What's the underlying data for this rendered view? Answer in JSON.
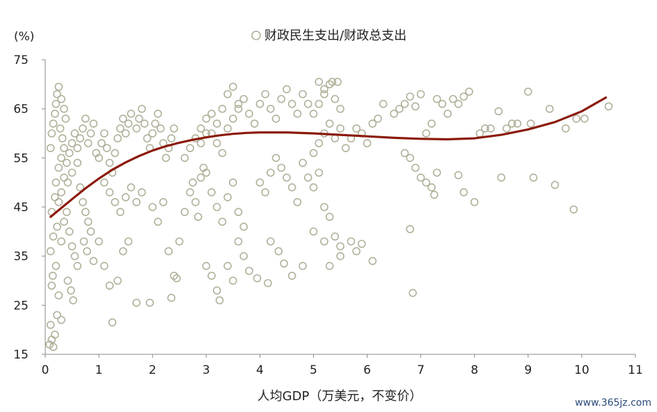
{
  "chart_data": {
    "type": "scatter",
    "y_unit_label": "(%)",
    "xlabel": "人均GDP（万美元，不变价）",
    "xlim": [
      0,
      11
    ],
    "ylim": [
      15,
      75
    ],
    "x_ticks": [
      0,
      1,
      2,
      3,
      4,
      5,
      6,
      7,
      8,
      9,
      10,
      11
    ],
    "y_ticks": [
      15,
      25,
      35,
      45,
      55,
      65,
      75
    ],
    "grid": false,
    "legend_position": "top-center",
    "series": [
      {
        "name": "财政民生支出/财政总支出",
        "marker": "hollow-circle",
        "color": "#b0b09a",
        "points": [
          [
            0.08,
            17
          ],
          [
            0.12,
            18
          ],
          [
            0.15,
            16.5
          ],
          [
            0.1,
            21
          ],
          [
            0.18,
            19
          ],
          [
            0.22,
            23
          ],
          [
            0.3,
            22
          ],
          [
            0.25,
            27
          ],
          [
            0.12,
            29
          ],
          [
            0.14,
            31
          ],
          [
            0.2,
            33
          ],
          [
            0.1,
            36
          ],
          [
            0.15,
            39
          ],
          [
            0.22,
            41
          ],
          [
            0.3,
            38
          ],
          [
            0.35,
            42
          ],
          [
            0.4,
            44
          ],
          [
            0.45,
            40
          ],
          [
            0.5,
            37
          ],
          [
            0.55,
            35
          ],
          [
            0.6,
            33
          ],
          [
            0.42,
            30
          ],
          [
            0.48,
            28
          ],
          [
            0.52,
            26
          ],
          [
            0.12,
            44
          ],
          [
            0.18,
            47
          ],
          [
            0.25,
            46
          ],
          [
            0.3,
            48
          ],
          [
            0.35,
            51
          ],
          [
            0.42,
            50
          ],
          [
            0.5,
            52
          ],
          [
            0.6,
            54
          ],
          [
            0.65,
            49
          ],
          [
            0.7,
            46
          ],
          [
            0.75,
            44
          ],
          [
            0.8,
            42
          ],
          [
            0.85,
            40
          ],
          [
            0.72,
            38
          ],
          [
            0.78,
            36
          ],
          [
            0.9,
            34
          ],
          [
            0.2,
            50
          ],
          [
            0.25,
            53
          ],
          [
            0.3,
            55
          ],
          [
            0.35,
            57
          ],
          [
            0.4,
            54
          ],
          [
            0.45,
            56
          ],
          [
            0.5,
            58
          ],
          [
            0.55,
            60
          ],
          [
            0.6,
            57
          ],
          [
            0.65,
            59
          ],
          [
            0.7,
            61
          ],
          [
            0.75,
            63
          ],
          [
            0.8,
            58
          ],
          [
            0.85,
            60
          ],
          [
            0.9,
            62
          ],
          [
            0.95,
            56
          ],
          [
            0.1,
            57
          ],
          [
            0.12,
            60
          ],
          [
            0.15,
            62
          ],
          [
            0.18,
            64
          ],
          [
            0.2,
            66
          ],
          [
            0.22,
            68
          ],
          [
            0.25,
            69.5
          ],
          [
            0.3,
            67
          ],
          [
            0.35,
            65
          ],
          [
            0.38,
            63
          ],
          [
            0.28,
            61
          ],
          [
            0.32,
            59
          ],
          [
            1.0,
            55
          ],
          [
            1.05,
            58
          ],
          [
            1.1,
            60
          ],
          [
            1.15,
            57
          ],
          [
            1.2,
            54
          ],
          [
            1.25,
            52
          ],
          [
            1.3,
            56
          ],
          [
            1.35,
            59
          ],
          [
            1.4,
            61
          ],
          [
            1.45,
            63
          ],
          [
            1.5,
            60
          ],
          [
            1.55,
            62
          ],
          [
            1.6,
            64
          ],
          [
            1.7,
            61
          ],
          [
            1.75,
            63
          ],
          [
            1.8,
            65
          ],
          [
            1.85,
            62
          ],
          [
            1.9,
            59
          ],
          [
            1.95,
            57
          ],
          [
            2.0,
            60
          ],
          [
            2.05,
            62
          ],
          [
            2.1,
            64
          ],
          [
            2.15,
            61
          ],
          [
            2.2,
            58
          ],
          [
            2.25,
            55
          ],
          [
            2.3,
            57
          ],
          [
            2.35,
            59
          ],
          [
            2.4,
            61
          ],
          [
            1.1,
            50
          ],
          [
            1.2,
            48
          ],
          [
            1.3,
            46
          ],
          [
            1.4,
            44
          ],
          [
            1.5,
            47
          ],
          [
            1.6,
            49
          ],
          [
            1.7,
            46
          ],
          [
            1.8,
            48
          ],
          [
            1.0,
            38
          ],
          [
            1.1,
            33
          ],
          [
            1.2,
            29
          ],
          [
            1.25,
            21.5
          ],
          [
            1.35,
            30
          ],
          [
            1.45,
            36
          ],
          [
            1.55,
            38
          ],
          [
            1.7,
            25.5
          ],
          [
            1.95,
            25.5
          ],
          [
            2.0,
            45
          ],
          [
            2.1,
            42
          ],
          [
            2.2,
            46
          ],
          [
            2.3,
            36
          ],
          [
            2.4,
            31
          ],
          [
            2.45,
            30.5
          ],
          [
            2.35,
            26.5
          ],
          [
            2.5,
            38
          ],
          [
            2.6,
            44
          ],
          [
            2.7,
            48
          ],
          [
            2.75,
            50
          ],
          [
            2.8,
            46
          ],
          [
            2.85,
            43
          ],
          [
            2.9,
            51
          ],
          [
            2.95,
            53
          ],
          [
            2.6,
            55
          ],
          [
            2.7,
            57
          ],
          [
            2.8,
            59
          ],
          [
            2.9,
            61
          ],
          [
            3.0,
            63
          ],
          [
            3.1,
            60
          ],
          [
            3.2,
            58
          ],
          [
            3.3,
            56
          ],
          [
            3.4,
            61
          ],
          [
            3.5,
            63
          ],
          [
            3.6,
            65
          ],
          [
            3.7,
            67
          ],
          [
            3.8,
            64
          ],
          [
            3.9,
            62
          ],
          [
            4.0,
            66
          ],
          [
            4.1,
            68
          ],
          [
            4.2,
            65
          ],
          [
            4.3,
            63
          ],
          [
            4.4,
            67
          ],
          [
            4.5,
            69
          ],
          [
            4.6,
            66
          ],
          [
            4.7,
            64
          ],
          [
            4.8,
            68
          ],
          [
            4.9,
            66
          ],
          [
            3.4,
            68
          ],
          [
            3.5,
            69.5
          ],
          [
            3.6,
            66
          ],
          [
            3.3,
            65
          ],
          [
            3.2,
            62
          ],
          [
            3.1,
            64
          ],
          [
            3.0,
            60
          ],
          [
            2.9,
            58
          ],
          [
            3.0,
            52
          ],
          [
            3.1,
            48
          ],
          [
            3.2,
            45
          ],
          [
            3.3,
            42
          ],
          [
            3.4,
            47
          ],
          [
            3.5,
            50
          ],
          [
            3.6,
            44
          ],
          [
            3.7,
            41
          ],
          [
            3.0,
            33
          ],
          [
            3.1,
            31
          ],
          [
            3.2,
            28
          ],
          [
            3.25,
            26
          ],
          [
            3.4,
            33
          ],
          [
            3.5,
            30
          ],
          [
            3.6,
            38
          ],
          [
            3.7,
            35
          ],
          [
            3.8,
            32
          ],
          [
            3.95,
            30.5
          ],
          [
            4.15,
            29.5
          ],
          [
            4.2,
            38
          ],
          [
            4.35,
            36
          ],
          [
            4.45,
            33.5
          ],
          [
            4.6,
            31
          ],
          [
            4.8,
            33
          ],
          [
            4.0,
            50
          ],
          [
            4.1,
            48
          ],
          [
            4.2,
            52
          ],
          [
            4.3,
            55
          ],
          [
            4.4,
            53
          ],
          [
            4.5,
            51
          ],
          [
            4.6,
            49
          ],
          [
            4.7,
            46
          ],
          [
            4.8,
            54
          ],
          [
            4.9,
            51
          ],
          [
            5.0,
            49
          ],
          [
            5.1,
            52
          ],
          [
            5.2,
            45
          ],
          [
            5.3,
            43
          ],
          [
            5.4,
            39
          ],
          [
            5.5,
            37
          ],
          [
            5.0,
            40
          ],
          [
            5.2,
            38
          ],
          [
            5.3,
            33
          ],
          [
            5.5,
            35
          ],
          [
            5.7,
            38
          ],
          [
            5.8,
            36
          ],
          [
            5.9,
            37.5
          ],
          [
            6.1,
            34
          ],
          [
            5.0,
            56
          ],
          [
            5.1,
            58
          ],
          [
            5.2,
            60
          ],
          [
            5.3,
            62
          ],
          [
            5.4,
            59
          ],
          [
            5.5,
            61
          ],
          [
            5.6,
            57
          ],
          [
            5.7,
            59
          ],
          [
            5.8,
            61
          ],
          [
            5.9,
            60
          ],
          [
            6.0,
            58
          ],
          [
            6.1,
            62
          ],
          [
            5.0,
            64
          ],
          [
            5.1,
            66
          ],
          [
            5.2,
            68
          ],
          [
            5.3,
            70
          ],
          [
            5.4,
            67
          ],
          [
            5.5,
            65
          ],
          [
            5.1,
            70.5
          ],
          [
            5.35,
            70.5
          ],
          [
            5.45,
            70.5
          ],
          [
            5.2,
            69
          ],
          [
            6.2,
            63
          ],
          [
            6.3,
            66
          ],
          [
            6.5,
            64
          ],
          [
            6.6,
            65
          ],
          [
            6.7,
            66
          ],
          [
            6.8,
            67.5
          ],
          [
            6.9,
            65.5
          ],
          [
            7.0,
            68
          ],
          [
            6.7,
            56
          ],
          [
            6.8,
            55
          ],
          [
            6.9,
            53
          ],
          [
            7.0,
            51
          ],
          [
            7.1,
            50
          ],
          [
            7.2,
            49
          ],
          [
            7.25,
            47.5
          ],
          [
            7.3,
            52
          ],
          [
            6.8,
            40.5
          ],
          [
            6.85,
            27.5
          ],
          [
            7.1,
            60
          ],
          [
            7.2,
            62
          ],
          [
            7.3,
            67
          ],
          [
            7.4,
            66
          ],
          [
            7.5,
            64
          ],
          [
            7.6,
            67
          ],
          [
            7.7,
            66
          ],
          [
            7.8,
            67.5
          ],
          [
            7.9,
            68.5
          ],
          [
            7.7,
            51.5
          ],
          [
            7.8,
            48
          ],
          [
            8.0,
            46
          ],
          [
            8.1,
            60
          ],
          [
            8.2,
            61
          ],
          [
            8.3,
            61
          ],
          [
            8.45,
            64.5
          ],
          [
            8.5,
            51
          ],
          [
            8.6,
            61
          ],
          [
            8.7,
            62
          ],
          [
            8.8,
            62
          ],
          [
            9.0,
            68.5
          ],
          [
            9.05,
            62
          ],
          [
            9.1,
            51
          ],
          [
            9.4,
            65
          ],
          [
            9.5,
            49.5
          ],
          [
            9.85,
            44.5
          ],
          [
            9.9,
            63
          ],
          [
            10.05,
            63
          ],
          [
            10.5,
            65.5
          ],
          [
            9.7,
            61
          ]
        ]
      },
      {
        "name": "fit",
        "type": "line",
        "color": "#8b1a0a",
        "points": [
          [
            0.1,
            43
          ],
          [
            0.3,
            44.8
          ],
          [
            0.5,
            46.6
          ],
          [
            0.75,
            48.8
          ],
          [
            1.0,
            50.8
          ],
          [
            1.25,
            52.6
          ],
          [
            1.5,
            54.1
          ],
          [
            1.75,
            55.4
          ],
          [
            2.0,
            56.5
          ],
          [
            2.25,
            57.4
          ],
          [
            2.5,
            58.1
          ],
          [
            2.75,
            58.7
          ],
          [
            3.0,
            59.2
          ],
          [
            3.25,
            59.6
          ],
          [
            3.5,
            59.9
          ],
          [
            3.75,
            60.1
          ],
          [
            4.0,
            60.2
          ],
          [
            4.5,
            60.2
          ],
          [
            5.0,
            60.0
          ],
          [
            5.5,
            59.7
          ],
          [
            6.0,
            59.4
          ],
          [
            6.5,
            59.1
          ],
          [
            7.0,
            58.9
          ],
          [
            7.5,
            58.8
          ],
          [
            8.0,
            59.0
          ],
          [
            8.5,
            59.7
          ],
          [
            9.0,
            60.8
          ],
          [
            9.5,
            62.3
          ],
          [
            10.0,
            64.5
          ],
          [
            10.45,
            67.3
          ]
        ]
      }
    ]
  },
  "watermark": "www.365jz.com"
}
